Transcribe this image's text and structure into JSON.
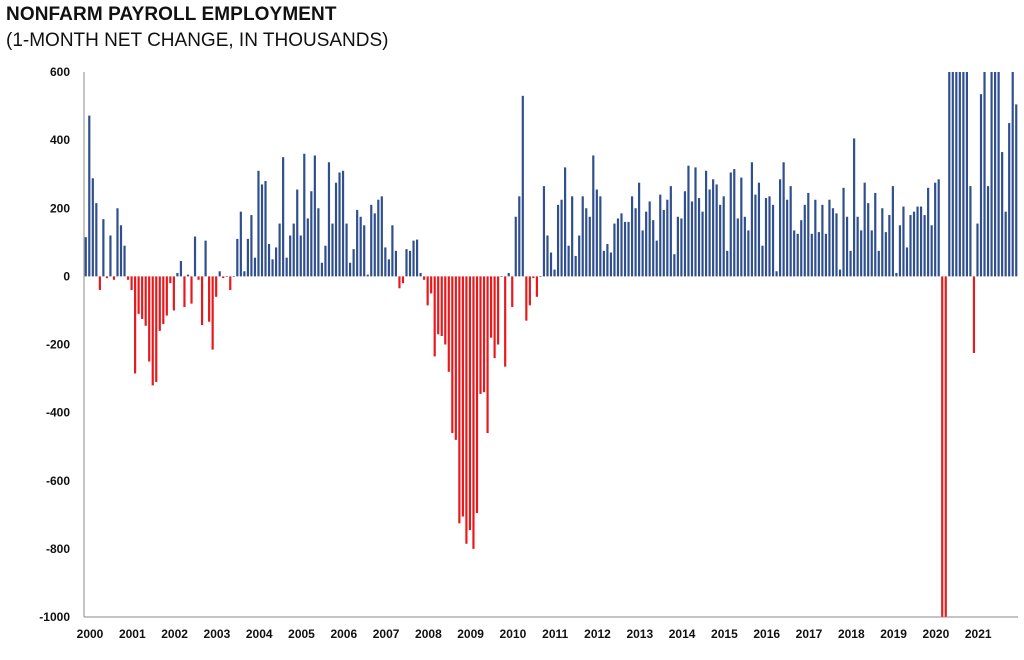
{
  "chart_data": {
    "type": "bar",
    "title": "NONFARM PAYROLL EMPLOYMENT",
    "subtitle": "(1-MONTH NET CHANGE, IN THOUSANDS)",
    "xlabel": "",
    "ylabel": "",
    "ylim": [
      -1000,
      600
    ],
    "clipped_at_limits": true,
    "y_ticks": [
      600,
      400,
      200,
      0,
      -200,
      -400,
      -600,
      -800,
      -1000
    ],
    "y_tick_labels": [
      "600",
      "400",
      "200",
      "0",
      "-200",
      "-400",
      "-600",
      "-800",
      "-1000"
    ],
    "x_tick_labels": [
      "2000",
      "2001",
      "2002",
      "2003",
      "2004",
      "2005",
      "2006",
      "2007",
      "2008",
      "2009",
      "2010",
      "2011",
      "2012",
      "2013",
      "2014",
      "2015",
      "2016",
      "2017",
      "2018",
      "2019",
      "2020",
      "2021"
    ],
    "start": "2000-01",
    "frequency": "monthly",
    "positive_color": "#2f4f8f",
    "negative_color": "#e8191c",
    "values": [
      115,
      472,
      288,
      215,
      -40,
      168,
      -5,
      120,
      -10,
      200,
      150,
      90,
      -10,
      -40,
      -285,
      -110,
      -125,
      -145,
      -250,
      -320,
      -310,
      -160,
      -140,
      -115,
      -20,
      -100,
      10,
      45,
      -90,
      5,
      -80,
      117,
      -10,
      -143,
      105,
      -133,
      -215,
      -60,
      15,
      -5,
      0,
      -40,
      0,
      110,
      190,
      15,
      110,
      180,
      55,
      310,
      270,
      280,
      95,
      50,
      85,
      155,
      350,
      55,
      120,
      155,
      255,
      120,
      360,
      170,
      250,
      355,
      200,
      40,
      90,
      335,
      155,
      275,
      305,
      310,
      155,
      40,
      80,
      195,
      175,
      150,
      5,
      210,
      185,
      225,
      235,
      85,
      50,
      150,
      75,
      -35,
      -20,
      80,
      75,
      105,
      108,
      10,
      -10,
      -85,
      -50,
      -235,
      -170,
      -175,
      -200,
      -280,
      -460,
      -480,
      -725,
      -705,
      -785,
      -745,
      -800,
      -695,
      -345,
      -340,
      -460,
      -180,
      -240,
      -200,
      0,
      -265,
      10,
      -90,
      175,
      235,
      530,
      -130,
      -85,
      -5,
      -60,
      0,
      265,
      120,
      70,
      20,
      210,
      225,
      320,
      90,
      235,
      60,
      120,
      235,
      200,
      175,
      355,
      255,
      235,
      75,
      95,
      70,
      155,
      170,
      185,
      160,
      160,
      235,
      200,
      275,
      135,
      190,
      220,
      165,
      105,
      240,
      195,
      225,
      265,
      65,
      175,
      170,
      250,
      325,
      220,
      320,
      230,
      190,
      310,
      255,
      285,
      270,
      210,
      235,
      75,
      305,
      315,
      170,
      290,
      175,
      135,
      335,
      240,
      275,
      90,
      230,
      235,
      210,
      15,
      285,
      335,
      225,
      265,
      135,
      125,
      165,
      210,
      245,
      125,
      225,
      130,
      210,
      125,
      225,
      200,
      185,
      20,
      260,
      175,
      75,
      405,
      175,
      135,
      275,
      215,
      135,
      245,
      75,
      200,
      130,
      180,
      265,
      10,
      150,
      205,
      85,
      180,
      190,
      205,
      205,
      180,
      260,
      150,
      275,
      285,
      -1000,
      -1000,
      600,
      600,
      600,
      600,
      600,
      600,
      265,
      -225,
      155,
      535,
      600,
      265,
      600,
      600,
      600,
      365,
      190,
      450,
      600,
      505
    ]
  }
}
